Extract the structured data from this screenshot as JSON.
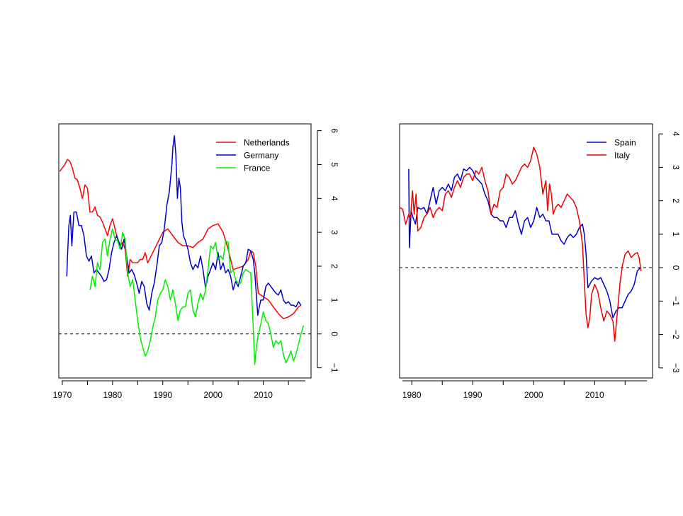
{
  "chart_data": [
    {
      "type": "line",
      "title": "",
      "xlabel": "",
      "ylabel": "",
      "xlim": [
        1969.3,
        2019.5
      ],
      "ylim": [
        -1.3,
        6.2
      ],
      "x_ticks": [
        1970,
        1980,
        1990,
        2000,
        2010
      ],
      "x_tick_labels": [
        "1970",
        "1980",
        "1990",
        "2000",
        "2010"
      ],
      "y_ticks": [
        -1,
        0,
        1,
        2,
        3,
        4,
        5,
        6
      ],
      "y_tick_labels": [
        "−1",
        "0",
        "1",
        "2",
        "3",
        "4",
        "5",
        "6"
      ],
      "y_axis_side": "right",
      "grid": false,
      "reference_line": {
        "y": 0,
        "style": "dashed",
        "color": "#000000"
      },
      "legend": {
        "placement": "top-right",
        "entries": [
          "Netherlands",
          "Germany",
          "France"
        ]
      },
      "series": [
        {
          "name": "Netherlands",
          "color": "#ff0000",
          "x": [
            1969.5,
            1970.0,
            1970.5,
            1971.0,
            1971.5,
            1972.0,
            1972.5,
            1973.0,
            1973.5,
            1974.0,
            1974.5,
            1975.0,
            1975.5,
            1976.0,
            1976.5,
            1977.0,
            1977.5,
            1978.0,
            1978.5,
            1979.0,
            1979.5,
            1980.0,
            1980.5,
            1981.0,
            1981.5,
            1982.0,
            1982.5,
            1983.0,
            1983.5,
            1984.0,
            1984.5,
            1985.0,
            1985.5,
            1986.0,
            1986.5,
            1987.0,
            1988.0,
            1989.0,
            1990.0,
            1991.0,
            1992.0,
            1993.0,
            1994.0,
            1995.0,
            1996.0,
            1997.0,
            1998.0,
            1999.0,
            2000.0,
            2001.0,
            2002.0,
            2003.0,
            2004.0,
            2005.0,
            2006.0,
            2007.0,
            2007.5,
            2008.0,
            2008.5,
            2009.0,
            2010.0,
            2011.0,
            2012.0,
            2013.0,
            2014.0,
            2015.0,
            2016.0,
            2017.0,
            2017.5
          ],
          "y": [
            4.8,
            4.9,
            5.0,
            5.15,
            5.1,
            4.9,
            4.6,
            4.55,
            4.3,
            4.0,
            4.4,
            4.3,
            3.6,
            3.6,
            3.75,
            3.5,
            3.45,
            3.3,
            3.1,
            2.9,
            3.2,
            3.4,
            3.1,
            2.8,
            2.6,
            2.7,
            2.5,
            1.7,
            2.2,
            2.1,
            2.1,
            2.1,
            2.2,
            2.2,
            2.4,
            2.1,
            2.4,
            2.7,
            3.0,
            3.1,
            2.9,
            2.7,
            2.6,
            2.6,
            2.55,
            2.7,
            2.8,
            3.1,
            3.2,
            3.25,
            3.0,
            2.5,
            1.9,
            1.95,
            2.0,
            2.2,
            2.45,
            2.4,
            2.0,
            1.2,
            1.1,
            1.0,
            0.8,
            0.6,
            0.45,
            0.5,
            0.6,
            0.8,
            0.85
          ]
        },
        {
          "name": "Germany",
          "color": "#0000cc",
          "x": [
            1970.9,
            1971.0,
            1971.3,
            1971.6,
            1971.9,
            1972.3,
            1972.8,
            1973.3,
            1973.8,
            1974.3,
            1974.8,
            1975.3,
            1975.8,
            1976.3,
            1976.8,
            1977.3,
            1977.8,
            1978.3,
            1978.8,
            1979.3,
            1979.8,
            1980.3,
            1980.8,
            1981.3,
            1981.8,
            1982.3,
            1982.8,
            1983.3,
            1983.8,
            1984.3,
            1984.8,
            1985.3,
            1985.8,
            1986.3,
            1986.8,
            1987.3,
            1987.8,
            1988.3,
            1988.8,
            1989.3,
            1989.8,
            1990.3,
            1990.8,
            1991.3,
            1991.8,
            1992.0,
            1992.3,
            1992.6,
            1992.9,
            1993.2,
            1993.5,
            1993.8,
            1994.1,
            1994.5,
            1995.0,
            1995.5,
            1996.0,
            1996.5,
            1997.0,
            1997.5,
            1998.0,
            1998.5,
            1999.0,
            1999.5,
            2000.0,
            2000.5,
            2001.0,
            2001.5,
            2002.0,
            2002.5,
            2003.0,
            2003.5,
            2004.0,
            2004.5,
            2005.0,
            2005.5,
            2006.0,
            2006.5,
            2007.0,
            2007.5,
            2008.0,
            2008.3,
            2008.6,
            2008.9,
            2009.2,
            2009.5,
            2010.0,
            2010.5,
            2011.0,
            2011.5,
            2012.0,
            2012.5,
            2013.0,
            2013.5,
            2014.0,
            2014.5,
            2015.0,
            2015.5,
            2016.0,
            2016.5,
            2017.0,
            2017.5
          ],
          "y": [
            1.7,
            2.2,
            3.2,
            3.5,
            2.6,
            3.6,
            3.6,
            3.2,
            3.2,
            2.9,
            2.3,
            2.15,
            2.3,
            1.8,
            1.9,
            1.8,
            1.7,
            1.55,
            1.6,
            1.9,
            2.4,
            2.7,
            2.9,
            2.7,
            2.5,
            2.8,
            2.3,
            1.8,
            1.9,
            1.75,
            1.5,
            1.2,
            1.55,
            1.4,
            0.9,
            0.7,
            1.2,
            1.5,
            2.0,
            2.6,
            2.7,
            3.1,
            3.8,
            4.2,
            5.0,
            5.5,
            5.85,
            5.3,
            4.0,
            4.6,
            4.3,
            3.3,
            2.9,
            2.75,
            2.5,
            2.1,
            1.9,
            2.05,
            1.95,
            2.3,
            1.9,
            1.35,
            1.7,
            1.9,
            2.1,
            1.9,
            2.4,
            1.9,
            2.1,
            1.8,
            1.9,
            1.7,
            1.3,
            1.55,
            1.4,
            1.7,
            2.0,
            2.1,
            2.5,
            2.45,
            2.2,
            1.8,
            1.2,
            0.55,
            0.8,
            1.0,
            1.0,
            1.4,
            1.5,
            1.4,
            1.3,
            1.2,
            1.15,
            1.3,
            1.0,
            0.9,
            0.95,
            0.85,
            0.85,
            0.8,
            0.95,
            0.85
          ]
        },
        {
          "name": "France",
          "color": "#00ee00",
          "x": [
            1975.5,
            1976.0,
            1976.5,
            1977.0,
            1977.5,
            1978.0,
            1978.5,
            1979.0,
            1979.5,
            1980.0,
            1980.5,
            1981.0,
            1981.5,
            1982.0,
            1982.5,
            1983.0,
            1983.5,
            1984.0,
            1984.5,
            1985.0,
            1985.5,
            1986.0,
            1986.5,
            1987.0,
            1987.5,
            1988.0,
            1988.5,
            1989.0,
            1989.5,
            1990.0,
            1990.5,
            1991.0,
            1991.5,
            1992.0,
            1992.5,
            1993.0,
            1993.5,
            1994.0,
            1994.5,
            1995.0,
            1995.5,
            1996.0,
            1996.5,
            1997.0,
            1997.5,
            1998.0,
            1998.5,
            1999.0,
            1999.5,
            2000.0,
            2000.5,
            2001.0,
            2001.5,
            2002.0,
            2002.5,
            2003.0,
            2003.5,
            2004.0,
            2004.5,
            2005.0,
            2005.5,
            2006.0,
            2006.5,
            2007.0,
            2007.5,
            2008.0,
            2008.3,
            2008.6,
            2008.9,
            2009.2,
            2009.5,
            2010.0,
            2010.5,
            2011.0,
            2011.5,
            2012.0,
            2012.5,
            2013.0,
            2013.5,
            2014.0,
            2014.5,
            2015.0,
            2015.5,
            2016.0,
            2016.5,
            2017.0,
            2017.5,
            2018.0
          ],
          "y": [
            1.3,
            1.7,
            1.4,
            2.1,
            1.9,
            2.7,
            2.8,
            2.3,
            2.8,
            3.1,
            2.8,
            2.75,
            2.5,
            3.0,
            2.8,
            1.8,
            1.4,
            1.6,
            1.0,
            0.4,
            -0.1,
            -0.4,
            -0.65,
            -0.5,
            -0.2,
            0.2,
            0.5,
            1.0,
            1.2,
            1.3,
            1.6,
            1.4,
            1.0,
            1.3,
            0.9,
            0.4,
            0.7,
            0.8,
            0.8,
            1.2,
            1.3,
            0.7,
            0.5,
            0.9,
            1.2,
            1.0,
            1.3,
            1.9,
            2.6,
            2.5,
            2.7,
            2.2,
            2.3,
            2.2,
            2.75,
            2.7,
            1.8,
            1.9,
            1.6,
            1.5,
            1.5,
            1.8,
            1.9,
            1.85,
            1.8,
            0.2,
            -0.9,
            -0.4,
            -0.1,
            0.1,
            0.3,
            0.65,
            0.4,
            0.3,
            0.0,
            -0.4,
            -0.2,
            -0.3,
            -0.2,
            -0.6,
            -0.85,
            -0.7,
            -0.5,
            -0.8,
            -0.6,
            -0.3,
            0.0,
            0.25
          ]
        }
      ]
    },
    {
      "type": "line",
      "title": "",
      "xlabel": "",
      "ylabel": "",
      "xlim": [
        1978.0,
        2019.5
      ],
      "ylim": [
        -3.3,
        4.3
      ],
      "x_ticks": [
        1980,
        1990,
        2000,
        2010
      ],
      "x_tick_labels": [
        "1980",
        "1990",
        "2000",
        "2010"
      ],
      "y_ticks": [
        -3,
        -2,
        -1,
        0,
        1,
        2,
        3,
        4
      ],
      "y_tick_labels": [
        "−3",
        "−2",
        "−1",
        "0",
        "1",
        "2",
        "3",
        "4"
      ],
      "y_axis_side": "right",
      "grid": false,
      "reference_line": {
        "y": 0,
        "style": "dashed",
        "color": "#000000"
      },
      "legend": {
        "placement": "top-right",
        "entries": [
          "Spain",
          "Italy"
        ]
      },
      "series": [
        {
          "name": "Spain",
          "color": "#0000cc",
          "x": [
            1979.5,
            1979.6,
            1979.9,
            1980.2,
            1980.6,
            1981.0,
            1981.5,
            1982.0,
            1982.5,
            1983.0,
            1983.5,
            1984.0,
            1984.5,
            1985.0,
            1985.5,
            1986.0,
            1986.5,
            1987.0,
            1987.5,
            1988.0,
            1988.5,
            1989.0,
            1989.5,
            1990.0,
            1990.5,
            1991.0,
            1991.5,
            1992.0,
            1992.5,
            1993.0,
            1993.5,
            1994.0,
            1994.5,
            1995.0,
            1995.5,
            1996.0,
            1996.5,
            1997.0,
            1997.5,
            1998.0,
            1998.5,
            1999.0,
            1999.5,
            2000.0,
            2000.5,
            2001.0,
            2001.5,
            2002.0,
            2002.5,
            2003.0,
            2003.5,
            2004.0,
            2004.5,
            2005.0,
            2005.5,
            2006.0,
            2006.5,
            2007.0,
            2007.5,
            2008.0,
            2008.3,
            2008.6,
            2008.9,
            2009.2,
            2009.5,
            2010.0,
            2010.5,
            2011.0,
            2011.5,
            2012.0,
            2012.5,
            2013.0,
            2013.5,
            2014.0,
            2014.5,
            2015.0,
            2015.5,
            2016.0,
            2016.5,
            2017.0,
            2017.5
          ],
          "y": [
            2.95,
            0.6,
            1.7,
            1.5,
            1.3,
            1.8,
            1.75,
            1.8,
            1.6,
            2.0,
            2.4,
            1.9,
            2.3,
            2.4,
            2.3,
            2.5,
            2.3,
            2.7,
            2.8,
            2.6,
            2.95,
            2.9,
            3.0,
            2.9,
            2.7,
            2.6,
            2.5,
            2.2,
            2.0,
            1.6,
            1.5,
            1.5,
            1.4,
            1.4,
            1.2,
            1.5,
            1.5,
            1.7,
            1.3,
            1.0,
            1.4,
            1.5,
            1.2,
            1.4,
            1.8,
            1.5,
            1.6,
            1.4,
            1.4,
            1.0,
            1.0,
            1.0,
            0.8,
            0.7,
            0.9,
            1.0,
            0.9,
            1.0,
            1.2,
            1.3,
            1.0,
            0.4,
            -0.6,
            -0.5,
            -0.4,
            -0.3,
            -0.35,
            -0.3,
            -0.5,
            -0.7,
            -1.0,
            -1.5,
            -1.3,
            -1.2,
            -1.2,
            -1.0,
            -0.8,
            -0.7,
            -0.5,
            -0.1,
            0.0
          ]
        },
        {
          "name": "Italy",
          "color": "#ee0000",
          "x": [
            1978.0,
            1978.5,
            1979.0,
            1979.5,
            1979.8,
            1980.1,
            1980.4,
            1980.7,
            1981.0,
            1981.5,
            1982.0,
            1982.5,
            1983.0,
            1983.5,
            1984.0,
            1984.5,
            1985.0,
            1985.5,
            1986.0,
            1986.5,
            1987.0,
            1987.5,
            1988.0,
            1988.5,
            1989.0,
            1989.5,
            1990.0,
            1990.5,
            1991.0,
            1991.5,
            1992.0,
            1992.5,
            1993.0,
            1993.5,
            1994.0,
            1994.5,
            1995.0,
            1995.5,
            1996.0,
            1996.5,
            1997.0,
            1997.5,
            1998.0,
            1998.5,
            1999.0,
            1999.5,
            2000.0,
            2000.5,
            2001.0,
            2001.5,
            2002.0,
            2002.3,
            2002.6,
            2002.9,
            2003.2,
            2003.6,
            2004.0,
            2004.5,
            2005.0,
            2005.5,
            2006.0,
            2006.5,
            2007.0,
            2007.5,
            2008.0,
            2008.3,
            2008.6,
            2008.9,
            2009.2,
            2009.5,
            2010.0,
            2010.5,
            2011.0,
            2011.5,
            2012.0,
            2012.5,
            2013.0,
            2013.3,
            2013.6,
            2013.9,
            2014.2,
            2014.6,
            2015.0,
            2015.5,
            2016.0,
            2016.5,
            2017.0,
            2017.3,
            2017.6
          ],
          "y": [
            1.8,
            1.75,
            1.3,
            1.6,
            1.5,
            2.3,
            1.6,
            2.2,
            1.1,
            1.2,
            1.5,
            1.6,
            1.8,
            1.5,
            1.7,
            1.8,
            1.7,
            2.2,
            2.3,
            2.1,
            2.4,
            2.6,
            2.4,
            2.7,
            2.8,
            2.8,
            2.6,
            2.9,
            2.8,
            3.0,
            2.6,
            2.3,
            1.6,
            1.9,
            1.8,
            2.3,
            2.4,
            2.8,
            2.7,
            2.5,
            2.6,
            2.8,
            3.0,
            3.1,
            3.0,
            3.2,
            3.6,
            3.4,
            3.0,
            2.2,
            2.6,
            1.7,
            2.5,
            2.2,
            1.6,
            1.8,
            1.9,
            1.8,
            2.0,
            2.2,
            2.1,
            2.0,
            1.8,
            1.4,
            0.7,
            -0.4,
            -1.4,
            -1.8,
            -1.5,
            -0.8,
            -0.5,
            -0.7,
            -1.2,
            -1.6,
            -1.3,
            -1.4,
            -1.6,
            -2.2,
            -1.6,
            -1.0,
            -0.4,
            0.1,
            0.4,
            0.5,
            0.3,
            0.4,
            0.45,
            0.3,
            -0.1
          ]
        }
      ]
    }
  ]
}
